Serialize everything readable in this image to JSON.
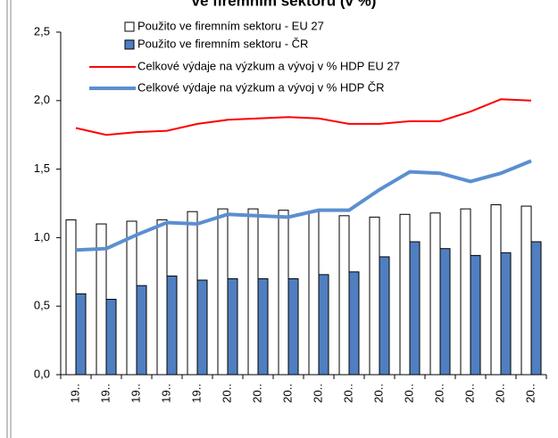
{
  "chart_data": {
    "type": "bar",
    "title": "ve firemním sektoru (v %)",
    "categories": [
      "19..",
      "19..",
      "19..",
      "19..",
      "19..",
      "20..",
      "20..",
      "20..",
      "20..",
      "20..",
      "20..",
      "20..",
      "20..",
      "20..",
      "20..",
      "20.."
    ],
    "series": [
      {
        "name": "Použito ve firemním sektoru - EU 27",
        "type": "bar",
        "color": "#ffffff",
        "values": [
          1.13,
          1.1,
          1.12,
          1.13,
          1.19,
          1.21,
          1.21,
          1.2,
          1.19,
          1.16,
          1.15,
          1.17,
          1.18,
          1.21,
          1.24,
          1.23
        ]
      },
      {
        "name": "Použito ve firemním sektoru - ČR",
        "type": "bar",
        "color": "#4f7fc0",
        "values": [
          0.59,
          0.55,
          0.65,
          0.72,
          0.69,
          0.7,
          0.7,
          0.7,
          0.73,
          0.75,
          0.86,
          0.97,
          0.92,
          0.87,
          0.89,
          0.97
        ]
      },
      {
        "name": "Celkové výdaje na výzkum a vývoj v % HDP EU 27",
        "type": "line",
        "color": "#ff0000",
        "values": [
          1.8,
          1.75,
          1.77,
          1.78,
          1.83,
          1.86,
          1.87,
          1.88,
          1.87,
          1.83,
          1.83,
          1.85,
          1.85,
          1.92,
          2.01,
          2.0
        ]
      },
      {
        "name": "Celkové výdaje na výzkum a vývoj v % HDP ČR",
        "type": "line",
        "color": "#5b8fd0",
        "values": [
          0.91,
          0.92,
          1.02,
          1.11,
          1.1,
          1.17,
          1.16,
          1.15,
          1.2,
          1.2,
          1.35,
          1.48,
          1.47,
          1.41,
          1.47,
          1.56
        ]
      }
    ],
    "ylim": [
      0,
      2.5
    ],
    "yticks": [
      {
        "value": 0,
        "label": "0,0"
      },
      {
        "value": 0.5,
        "label": "0,5"
      },
      {
        "value": 1,
        "label": "1,0"
      },
      {
        "value": 1.5,
        "label": "1,5"
      },
      {
        "value": 2,
        "label": "2,0"
      },
      {
        "value": 2.5,
        "label": "2,5"
      }
    ]
  }
}
